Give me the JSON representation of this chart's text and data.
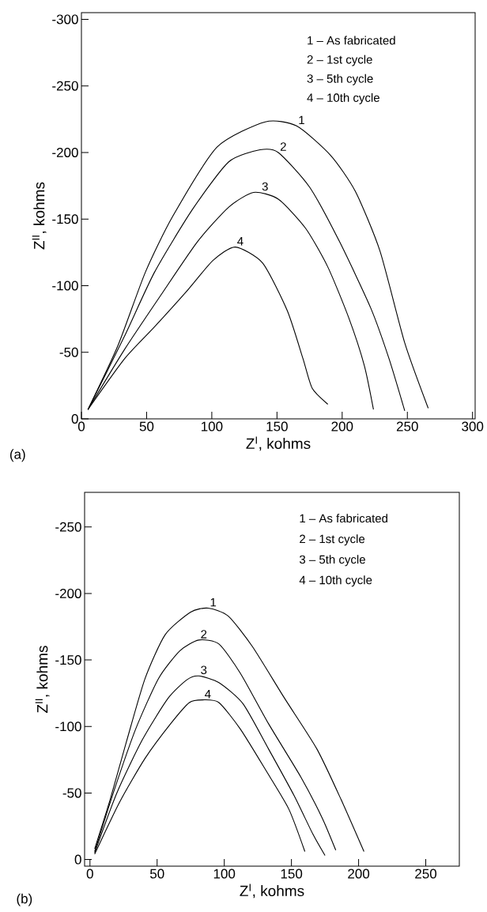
{
  "chart_data": [
    {
      "type": "line",
      "xlabel": "Z$^{I}$, kohms",
      "ylabel": "Z$^{II}$, kohms",
      "xlim": [
        0,
        302
      ],
      "ylim": [
        0,
        -305
      ],
      "xticks": [
        0,
        50,
        100,
        150,
        200,
        250,
        300
      ],
      "yticks": [
        0,
        -50,
        -100,
        -150,
        -200,
        -250,
        -300
      ],
      "series": [
        {
          "color": "#000000",
          "x": [
            5,
            28,
            49,
            70,
            104,
            141,
            165,
            191,
            210,
            229,
            248,
            266
          ],
          "values": [
            -7,
            -55,
            -110,
            -152,
            -204,
            -223,
            -220,
            -198,
            -171,
            -126,
            -57,
            -8
          ]
        },
        {
          "color": "#000000",
          "x": [
            5,
            33,
            56,
            85,
            113,
            137,
            151,
            175,
            198,
            222,
            236,
            248
          ],
          "values": [
            -7,
            -62,
            -110,
            -157,
            -193,
            -202,
            -200,
            -174,
            -133,
            -83,
            -45,
            -6
          ]
        },
        {
          "color": "#000000",
          "x": [
            5,
            33,
            61,
            89,
            113,
            132,
            151,
            172,
            189,
            205,
            217,
            224
          ],
          "values": [
            -7,
            -52,
            -93,
            -133,
            -159,
            -170,
            -165,
            -143,
            -114,
            -76,
            -40,
            -7
          ]
        },
        {
          "color": "#000000",
          "x": [
            5,
            33,
            56,
            80,
            101,
            118,
            139,
            158,
            170,
            177,
            189
          ],
          "values": [
            -7,
            -45,
            -69,
            -95,
            -119,
            -129,
            -117,
            -81,
            -45,
            -23,
            -11
          ]
        }
      ],
      "annotations": [
        "(a)",
        "1 – As fabricated",
        "2 – 1st cycle",
        "3 – 5th cycle",
        "4 – 10th cycle",
        {
          "text": "1",
          "x": 165,
          "y": -220
        },
        {
          "text": "2",
          "x": 151,
          "y": -200
        },
        {
          "text": "3",
          "x": 137,
          "y": -170
        },
        {
          "text": "4",
          "x": 118,
          "y": -129
        }
      ]
    },
    {
      "type": "line",
      "xlabel": "Z$^{I}$, kohms",
      "ylabel": "Z$^{II}$, kohms",
      "xlim": [
        -4,
        275
      ],
      "ylim": [
        5,
        -276
      ],
      "xticks": [
        0,
        50,
        100,
        150,
        200,
        250
      ],
      "yticks": [
        0,
        -50,
        -100,
        -150,
        -200,
        -250
      ],
      "series": [
        {
          "color": "#000000",
          "x": [
            3.5,
            15,
            27,
            41,
            56,
            75,
            88,
            103,
            121,
            145,
            169,
            187,
            204
          ],
          "values": [
            -8,
            -45,
            -88,
            -136,
            -169,
            -186,
            -189,
            -183,
            -160,
            -121,
            -83,
            -45,
            -6
          ]
        },
        {
          "color": "#000000",
          "x": [
            3.5,
            18,
            34,
            51,
            67,
            81,
            96,
            112,
            133,
            157,
            173,
            183
          ],
          "values": [
            -6,
            -52,
            -98,
            -136,
            -157,
            -165,
            -162,
            -140,
            -102,
            -62,
            -31,
            -7
          ]
        },
        {
          "color": "#000000",
          "x": [
            3.5,
            20,
            39,
            58,
            72,
            81,
            96,
            114,
            133,
            152,
            166,
            175
          ],
          "values": [
            -5,
            -50,
            -90,
            -121,
            -135,
            -138,
            -133,
            -117,
            -83,
            -48,
            -19,
            -3
          ]
        },
        {
          "color": "#000000",
          "x": [
            3.5,
            22,
            41,
            60,
            74,
            84,
            96,
            112,
            131,
            148,
            160
          ],
          "values": [
            -4,
            -43,
            -76,
            -102,
            -118,
            -120,
            -118,
            -98,
            -67,
            -38,
            -6
          ]
        }
      ],
      "annotations": [
        "(b)",
        "1 – As fabricated",
        "2 – 1st cycle",
        "3 – 5th cycle",
        "4 – 10th cycle",
        {
          "text": "1",
          "x": 88,
          "y": -189
        },
        {
          "text": "2",
          "x": 81,
          "y": -165
        },
        {
          "text": "3",
          "x": 81,
          "y": -138
        },
        {
          "text": "4",
          "x": 84,
          "y": -120
        }
      ]
    }
  ]
}
